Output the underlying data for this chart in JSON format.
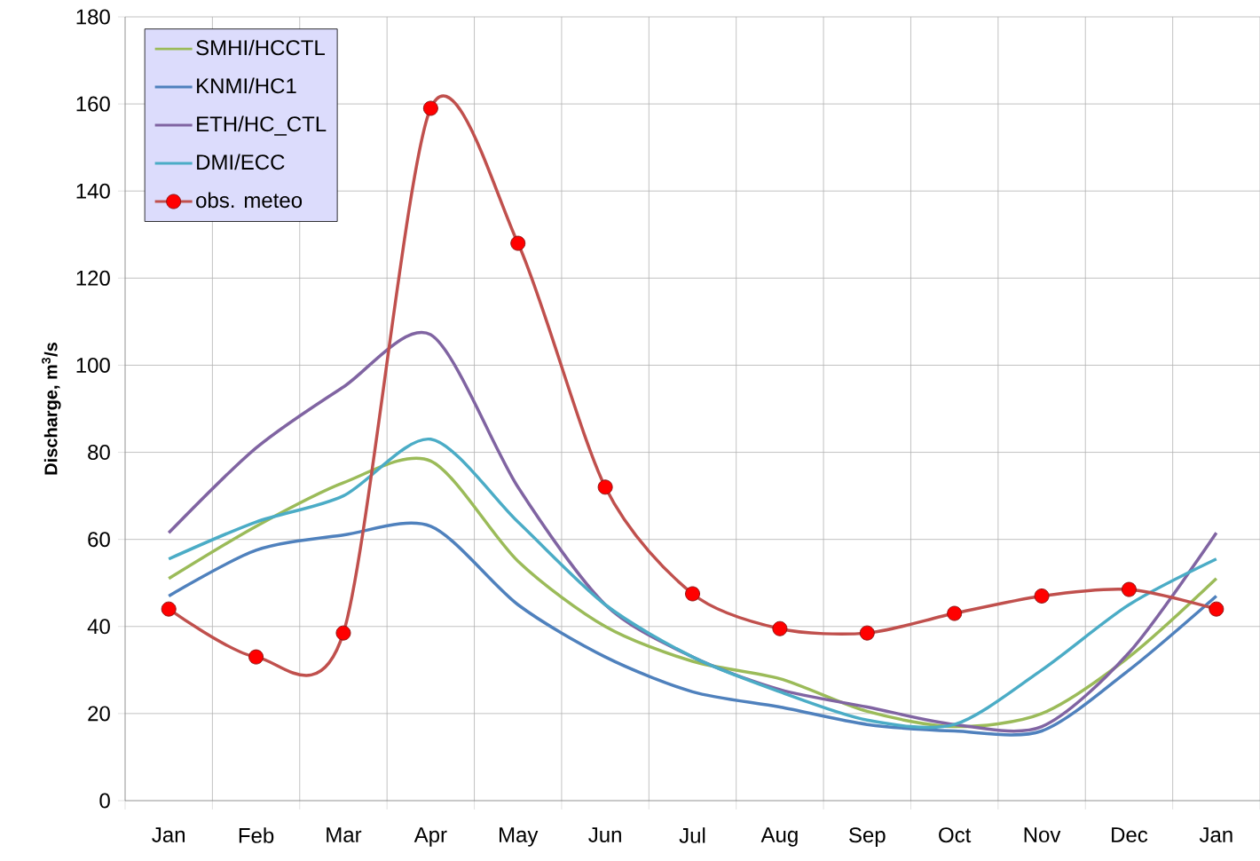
{
  "chart_data": {
    "type": "line",
    "ylabel": "Discharge, m$^{3}$/s",
    "categories": [
      "Jan",
      "Feb",
      "Mar",
      "Apr",
      "May",
      "Jun",
      "Jul",
      "Aug",
      "Sep",
      "Oct",
      "Nov",
      "Dec",
      "Jan"
    ],
    "series": [
      {
        "name": "SMHI/HCCTL",
        "color": "#9bbb59",
        "values": [
          51,
          63,
          73,
          78,
          55,
          40,
          32,
          28,
          20.5,
          17,
          20,
          33,
          51
        ]
      },
      {
        "name": "KNMI/HC1",
        "color": "#4f81bd",
        "values": [
          47,
          57.5,
          61,
          63,
          45,
          33,
          25,
          21.5,
          17.5,
          16,
          16,
          30,
          47
        ]
      },
      {
        "name": "ETH/HC_CTL",
        "color": "#8064a2",
        "values": [
          61.5,
          81,
          95,
          107,
          72,
          45,
          33,
          25.5,
          21.5,
          17.5,
          17,
          34,
          61.5
        ]
      },
      {
        "name": "DMI/ECC",
        "color": "#4bacc6",
        "values": [
          55.5,
          64,
          70,
          83,
          64,
          45,
          33,
          25,
          18.5,
          17.5,
          30,
          45,
          55.5
        ]
      },
      {
        "name": "obs. meteo",
        "color": "#c0504d",
        "marker": "circle",
        "values": [
          44,
          33,
          38.5,
          159,
          128,
          72,
          47.5,
          39.5,
          38.5,
          43,
          47,
          48.5,
          44
        ]
      }
    ],
    "ylim": [
      0,
      180
    ],
    "yticks": [
      0,
      20,
      40,
      60,
      80,
      100,
      120,
      140,
      160,
      180
    ],
    "grid": true,
    "legend": "top left",
    "line_style": "solid"
  }
}
